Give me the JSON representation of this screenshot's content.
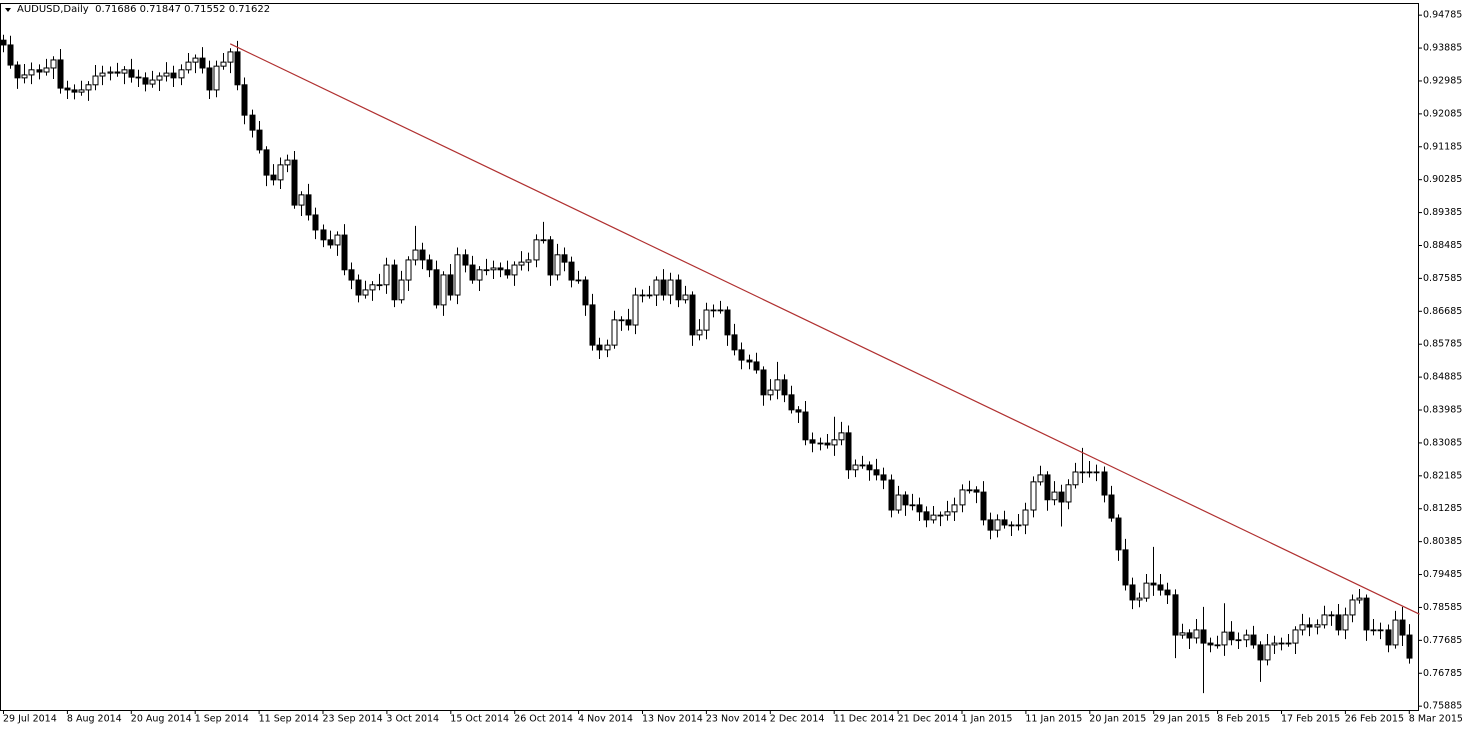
{
  "chart_data": {
    "type": "candlestick",
    "title": "AUDUSD,Daily",
    "header_values": [
      0.71686,
      0.71847,
      0.71552,
      0.71622
    ],
    "categories": [
      "29 Jul 2014",
      null,
      null,
      null,
      null,
      null,
      null,
      null,
      null,
      "8 Aug 2014",
      null,
      null,
      null,
      null,
      null,
      null,
      null,
      null,
      "20 Aug 2014",
      null,
      null,
      null,
      null,
      null,
      null,
      null,
      null,
      "1 Sep 2014",
      null,
      null,
      null,
      null,
      null,
      null,
      null,
      null,
      "11 Sep 2014",
      null,
      null,
      null,
      null,
      null,
      null,
      null,
      null,
      "23 Sep 2014",
      null,
      null,
      null,
      null,
      null,
      null,
      null,
      null,
      "3 Oct 2014",
      null,
      null,
      null,
      null,
      null,
      null,
      null,
      null,
      "15 Oct 2014",
      null,
      null,
      null,
      null,
      null,
      null,
      null,
      null,
      "26 Oct 2014",
      null,
      null,
      null,
      null,
      null,
      null,
      null,
      null,
      "4 Nov 2014",
      null,
      null,
      null,
      null,
      null,
      null,
      null,
      null,
      "13 Nov 2014",
      null,
      null,
      null,
      null,
      null,
      null,
      null,
      null,
      "23 Nov 2014",
      null,
      null,
      null,
      null,
      null,
      null,
      null,
      null,
      "2 Dec 2014",
      null,
      null,
      null,
      null,
      null,
      null,
      null,
      null,
      "11 Dec 2014",
      null,
      null,
      null,
      null,
      null,
      null,
      null,
      null,
      "21 Dec 2014",
      null,
      null,
      null,
      null,
      null,
      null,
      null,
      null,
      "1 Jan 2015",
      null,
      null,
      null,
      null,
      null,
      null,
      null,
      null,
      "11 Jan 2015",
      null,
      null,
      null,
      null,
      null,
      null,
      null,
      null,
      "20 Jan 2015",
      null,
      null,
      null,
      null,
      null,
      null,
      null,
      null,
      "29 Jan 2015",
      null,
      null,
      null,
      null,
      null,
      null,
      null,
      null,
      "8 Feb 2015",
      null,
      null,
      null,
      null,
      null,
      null,
      null,
      null,
      "17 Feb 2015",
      null,
      null,
      null,
      null,
      null,
      null,
      null,
      null,
      "26 Feb 2015",
      null,
      null,
      null,
      null,
      null,
      null,
      null,
      null,
      "8 Mar 2015"
    ],
    "open": [
      0.941,
      0.9397,
      0.9342,
      0.9307,
      0.9315,
      0.9329,
      0.9323,
      0.9334,
      0.9356,
      0.9279,
      0.9274,
      0.9268,
      0.9274,
      0.9288,
      0.9312,
      0.932,
      0.9323,
      0.932,
      0.9329,
      0.9309,
      0.9307,
      0.929,
      0.9301,
      0.9312,
      0.932,
      0.9307,
      0.9329,
      0.935,
      0.9361,
      0.9334,
      0.9274,
      0.9339,
      0.935,
      0.9378,
      0.9288,
      0.9205,
      0.9164,
      0.911,
      0.9041,
      0.9028,
      0.9069,
      0.9082,
      0.8959,
      0.8987,
      0.8932,
      0.8891,
      0.8864,
      0.885,
      0.8877,
      0.8782,
      0.8754,
      0.8713,
      0.8727,
      0.8741,
      0.8741,
      0.8795,
      0.87,
      0.8754,
      0.8809,
      0.8836,
      0.8809,
      0.8782,
      0.8686,
      0.8768,
      0.8713,
      0.8823,
      0.8795,
      0.8754,
      0.8782,
      0.8782,
      0.8787,
      0.8782,
      0.8768,
      0.8795,
      0.8803,
      0.8809,
      0.8864,
      0.8864,
      0.8768,
      0.8823,
      0.8803,
      0.8754,
      0.8754,
      0.8686,
      0.8576,
      0.8563,
      0.8576,
      0.8645,
      0.8645,
      0.8631,
      0.8713,
      0.8713,
      0.8713,
      0.8754,
      0.8713,
      0.8754,
      0.87,
      0.8713,
      0.8604,
      0.8617,
      0.8672,
      0.8672,
      0.8672,
      0.8604,
      0.8563,
      0.8535,
      0.853,
      0.8508,
      0.844,
      0.8453,
      0.8481,
      0.844,
      0.8399,
      0.8393,
      0.8317,
      0.8308,
      0.8308,
      0.8303,
      0.8317,
      0.8336,
      0.8235,
      0.8248,
      0.8248,
      0.8235,
      0.8221,
      0.8207,
      0.8125,
      0.8166,
      0.8139,
      0.8139,
      0.812,
      0.8098,
      0.8111,
      0.8111,
      0.812,
      0.8139,
      0.818,
      0.818,
      0.8174,
      0.8098,
      0.807,
      0.8098,
      0.8084,
      0.8084,
      0.8084,
      0.8125,
      0.8202,
      0.8221,
      0.8153,
      0.8174,
      0.8147,
      0.8194,
      0.8229,
      0.8229,
      0.8229,
      0.8229,
      0.8166,
      0.8103,
      0.8016,
      0.792,
      0.7879,
      0.7884,
      0.7925,
      0.792,
      0.7906,
      0.7893,
      0.7783,
      0.7789,
      0.7775,
      0.7797,
      0.7761,
      0.7756,
      0.7756,
      0.7791,
      0.777,
      0.777,
      0.7783,
      0.7756,
      0.7715,
      0.7756,
      0.7761,
      0.7761,
      0.7761,
      0.7797,
      0.7811,
      0.7805,
      0.7811,
      0.7838,
      0.7838,
      0.7797,
      0.7838,
      0.7879,
      0.7884,
      0.7797,
      0.7797,
      0.7797,
      0.7756,
      0.7824,
      0.7783
    ],
    "high": [
      0.9425,
      0.9422,
      0.9352,
      0.9345,
      0.9349,
      0.9344,
      0.9359,
      0.9366,
      0.9386,
      0.9299,
      0.9289,
      0.9299,
      0.9298,
      0.9342,
      0.934,
      0.9338,
      0.9348,
      0.9339,
      0.9359,
      0.9329,
      0.9322,
      0.9326,
      0.9322,
      0.935,
      0.934,
      0.9344,
      0.9375,
      0.9371,
      0.9391,
      0.9354,
      0.9354,
      0.9375,
      0.9388,
      0.9408,
      0.9308,
      0.922,
      0.9189,
      0.912,
      0.9071,
      0.9089,
      0.9097,
      0.9107,
      0.8997,
      0.9017,
      0.8952,
      0.8906,
      0.8889,
      0.8887,
      0.8907,
      0.8802,
      0.8769,
      0.8752,
      0.8751,
      0.8771,
      0.8815,
      0.881,
      0.8779,
      0.8819,
      0.8902,
      0.8856,
      0.8824,
      0.8807,
      0.8778,
      0.8798,
      0.8843,
      0.8838,
      0.882,
      0.8792,
      0.8812,
      0.8807,
      0.8802,
      0.8807,
      0.8805,
      0.8833,
      0.8829,
      0.8879,
      0.8913,
      0.8874,
      0.8853,
      0.8843,
      0.8818,
      0.8779,
      0.8764,
      0.8716,
      0.8596,
      0.8591,
      0.867,
      0.8655,
      0.8675,
      0.8733,
      0.8728,
      0.8738,
      0.8764,
      0.8784,
      0.8774,
      0.8769,
      0.8738,
      0.8723,
      0.8647,
      0.8692,
      0.8687,
      0.8697,
      0.8682,
      0.8634,
      0.8583,
      0.855,
      0.8555,
      0.8518,
      0.8483,
      0.853,
      0.8496,
      0.8465,
      0.8409,
      0.8423,
      0.8337,
      0.8323,
      0.8333,
      0.838,
      0.8366,
      0.8356,
      0.8263,
      0.8273,
      0.8258,
      0.8265,
      0.8241,
      0.8222,
      0.8191,
      0.8176,
      0.8169,
      0.8159,
      0.8135,
      0.8136,
      0.8121,
      0.815,
      0.8159,
      0.8195,
      0.8205,
      0.819,
      0.8204,
      0.8118,
      0.8113,
      0.8123,
      0.8094,
      0.8114,
      0.8145,
      0.8217,
      0.8246,
      0.8231,
      0.8204,
      0.8194,
      0.8209,
      0.8254,
      0.8295,
      0.8259,
      0.8249,
      0.8244,
      0.8191,
      0.8113,
      0.8046,
      0.794,
      0.7899,
      0.795,
      0.8024,
      0.795,
      0.7926,
      0.7908,
      0.7814,
      0.7799,
      0.7827,
      0.786,
      0.7776,
      0.7781,
      0.787,
      0.7821,
      0.779,
      0.7798,
      0.7808,
      0.7766,
      0.7786,
      0.7781,
      0.7776,
      0.7786,
      0.7807,
      0.7841,
      0.7831,
      0.7826,
      0.7863,
      0.7848,
      0.7868,
      0.7858,
      0.7894,
      0.7909,
      0.7894,
      0.7827,
      0.7817,
      0.7812,
      0.7849,
      0.786,
      0.7813
    ],
    "low": [
      0.9377,
      0.9332,
      0.9277,
      0.9292,
      0.929,
      0.9303,
      0.9313,
      0.9304,
      0.9264,
      0.9249,
      0.9248,
      0.9258,
      0.9244,
      0.9273,
      0.9287,
      0.93,
      0.931,
      0.929,
      0.9294,
      0.9282,
      0.927,
      0.928,
      0.9271,
      0.9297,
      0.9282,
      0.9287,
      0.9319,
      0.932,
      0.9319,
      0.9249,
      0.9254,
      0.9329,
      0.932,
      0.9273,
      0.918,
      0.9144,
      0.91,
      0.9011,
      0.9013,
      0.9003,
      0.9049,
      0.8949,
      0.8929,
      0.8917,
      0.8866,
      0.8844,
      0.884,
      0.882,
      0.8767,
      0.8729,
      0.8693,
      0.8703,
      0.8697,
      0.8726,
      0.8716,
      0.868,
      0.869,
      0.8724,
      0.8794,
      0.8784,
      0.8762,
      0.8676,
      0.8656,
      0.8698,
      0.8688,
      0.8775,
      0.8744,
      0.8724,
      0.8767,
      0.8757,
      0.8762,
      0.8758,
      0.8738,
      0.878,
      0.8778,
      0.8789,
      0.8854,
      0.8738,
      0.8753,
      0.8778,
      0.8734,
      0.8744,
      0.8656,
      0.8561,
      0.8538,
      0.8543,
      0.8566,
      0.8615,
      0.8616,
      0.8606,
      0.8693,
      0.8703,
      0.8683,
      0.8698,
      0.8688,
      0.868,
      0.869,
      0.8574,
      0.8589,
      0.8592,
      0.8652,
      0.8662,
      0.8574,
      0.8548,
      0.851,
      0.851,
      0.8498,
      0.841,
      0.8425,
      0.8428,
      0.842,
      0.8389,
      0.8363,
      0.8302,
      0.8283,
      0.8288,
      0.8293,
      0.8273,
      0.8302,
      0.821,
      0.8215,
      0.8238,
      0.8205,
      0.8206,
      0.8182,
      0.8105,
      0.8115,
      0.8109,
      0.8124,
      0.8095,
      0.8078,
      0.8088,
      0.8081,
      0.8096,
      0.8095,
      0.8119,
      0.817,
      0.8144,
      0.8083,
      0.8045,
      0.805,
      0.8074,
      0.8054,
      0.8069,
      0.8059,
      0.8105,
      0.8192,
      0.8123,
      0.8138,
      0.808,
      0.8127,
      0.8184,
      0.8199,
      0.8214,
      0.8204,
      0.8146,
      0.8093,
      0.7986,
      0.7905,
      0.7854,
      0.7859,
      0.7874,
      0.789,
      0.7891,
      0.7868,
      0.772,
      0.7773,
      0.7745,
      0.776,
      0.7624,
      0.7736,
      0.7746,
      0.7726,
      0.7755,
      0.7745,
      0.775,
      0.7746,
      0.7655,
      0.77,
      0.7731,
      0.7741,
      0.7751,
      0.7731,
      0.7782,
      0.778,
      0.7785,
      0.7801,
      0.7808,
      0.7782,
      0.7772,
      0.7818,
      0.7869,
      0.7767,
      0.7782,
      0.7772,
      0.7736,
      0.7746,
      0.7753,
      0.7705
    ],
    "close": [
      0.9397,
      0.9342,
      0.9307,
      0.9315,
      0.9329,
      0.9323,
      0.9334,
      0.9356,
      0.9279,
      0.9274,
      0.9268,
      0.9274,
      0.9288,
      0.9312,
      0.932,
      0.9323,
      0.932,
      0.9329,
      0.9309,
      0.9307,
      0.929,
      0.9301,
      0.9312,
      0.932,
      0.9307,
      0.9329,
      0.935,
      0.9361,
      0.9334,
      0.9274,
      0.9339,
      0.935,
      0.9378,
      0.9288,
      0.9205,
      0.9164,
      0.911,
      0.9041,
      0.9028,
      0.9069,
      0.9082,
      0.8959,
      0.8987,
      0.8932,
      0.8891,
      0.8864,
      0.885,
      0.8877,
      0.8782,
      0.8754,
      0.8713,
      0.8727,
      0.8741,
      0.8741,
      0.8795,
      0.87,
      0.8754,
      0.8809,
      0.8836,
      0.8809,
      0.8782,
      0.8686,
      0.8768,
      0.8713,
      0.8823,
      0.8795,
      0.8754,
      0.8782,
      0.8782,
      0.8787,
      0.8782,
      0.8768,
      0.8795,
      0.8803,
      0.8809,
      0.8864,
      0.8864,
      0.8768,
      0.8823,
      0.8803,
      0.8754,
      0.8754,
      0.8686,
      0.8576,
      0.8563,
      0.8576,
      0.8645,
      0.8645,
      0.8631,
      0.8713,
      0.8713,
      0.8713,
      0.8754,
      0.8713,
      0.8754,
      0.87,
      0.8713,
      0.8604,
      0.8617,
      0.8672,
      0.8672,
      0.8672,
      0.8604,
      0.8563,
      0.8535,
      0.853,
      0.8508,
      0.844,
      0.8453,
      0.8481,
      0.844,
      0.8399,
      0.8393,
      0.8317,
      0.8308,
      0.8308,
      0.8303,
      0.8317,
      0.8336,
      0.8235,
      0.8248,
      0.8248,
      0.8235,
      0.8221,
      0.8207,
      0.8125,
      0.8166,
      0.8139,
      0.8139,
      0.812,
      0.8098,
      0.8111,
      0.8111,
      0.812,
      0.8139,
      0.818,
      0.818,
      0.8174,
      0.8098,
      0.807,
      0.8098,
      0.8084,
      0.8084,
      0.8084,
      0.8125,
      0.8202,
      0.8221,
      0.8153,
      0.8174,
      0.8147,
      0.8194,
      0.8229,
      0.8229,
      0.8229,
      0.8229,
      0.8166,
      0.8103,
      0.8016,
      0.792,
      0.7879,
      0.7884,
      0.7925,
      0.792,
      0.7906,
      0.7893,
      0.7783,
      0.7789,
      0.7775,
      0.7797,
      0.7761,
      0.7756,
      0.7756,
      0.7791,
      0.777,
      0.777,
      0.7783,
      0.7756,
      0.7715,
      0.7756,
      0.7761,
      0.7761,
      0.7761,
      0.7797,
      0.7811,
      0.7805,
      0.7811,
      0.7838,
      0.7838,
      0.7797,
      0.7838,
      0.7879,
      0.7884,
      0.7797,
      0.7797,
      0.7797,
      0.7756,
      0.7824,
      0.7783,
      0.772
    ],
    "colors": {
      "up": "#ffffff",
      "down": "#000000",
      "outline": "#000000"
    },
    "trendline": {
      "color": "#b03030",
      "x": [
        32,
        199.5
      ],
      "y": [
        0.94,
        0.784
      ]
    },
    "ylim": [
      0.7578,
      0.9509
    ],
    "yticks": [
      0.94785,
      0.93885,
      0.92985,
      0.92085,
      0.91185,
      0.90285,
      0.89385,
      0.88485,
      0.87585,
      0.86685,
      0.85785,
      0.84885,
      0.83985,
      0.83085,
      0.82185,
      0.81285,
      0.80385,
      0.79485,
      0.78585,
      0.77685,
      0.76785,
      0.75885
    ],
    "y_axis_side": "right"
  }
}
